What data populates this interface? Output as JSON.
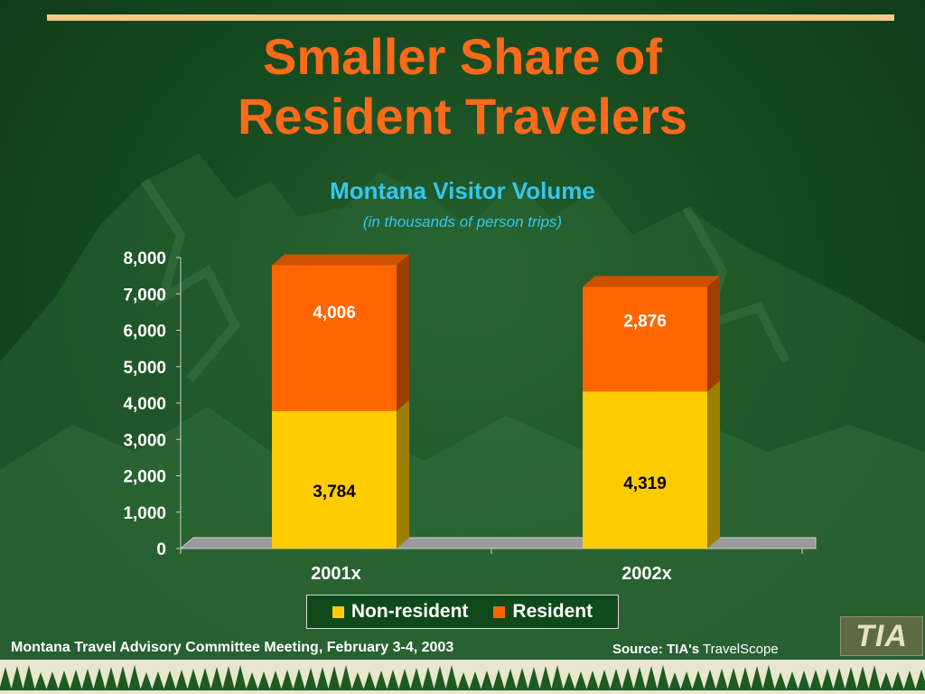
{
  "slide": {
    "title_line1": "Smaller Share of",
    "title_line2": "Resident Travelers",
    "footer_left": "Montana Travel Advisory Committee Meeting, February 3-4, 2003",
    "source_prefix": "Source: TIA's",
    "source_name": "TravelScope",
    "logo_text": "TIA"
  },
  "chart_data": {
    "type": "bar",
    "stacked": true,
    "title": "Montana Visitor Volume",
    "subtitle": "(in thousands of person trips)",
    "categories": [
      "2001x",
      "2002x"
    ],
    "series": [
      {
        "name": "Non-resident",
        "values": [
          3784,
          4319
        ],
        "labels": [
          "3,784",
          "4,319"
        ],
        "color": "#ffcc00"
      },
      {
        "name": "Resident",
        "values": [
          4006,
          2876
        ],
        "labels": [
          "4,006",
          "2,876"
        ],
        "color": "#ff6600"
      }
    ],
    "ylim": [
      0,
      8000
    ],
    "yticks": [
      0,
      1000,
      2000,
      3000,
      4000,
      5000,
      6000,
      7000,
      8000
    ],
    "ytick_labels": [
      "0",
      "1,000",
      "2,000",
      "3,000",
      "4,000",
      "5,000",
      "6,000",
      "7,000",
      "8,000"
    ],
    "legend_position": "bottom",
    "grid": false
  },
  "colors": {
    "background": "#164a20",
    "title": "#ff6a1a",
    "chart_title": "#35c7ee",
    "rule": "#f3c985"
  }
}
